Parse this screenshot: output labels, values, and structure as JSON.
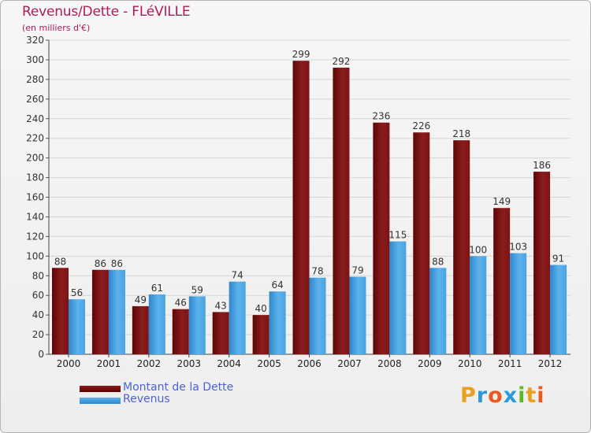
{
  "chart_data": {
    "type": "bar",
    "title": "Revenus/Dette - FLéVILLE",
    "subtitle": "(en milliers d'€)",
    "categories": [
      "2000",
      "2001",
      "2002",
      "2003",
      "2004",
      "2005",
      "2006",
      "2007",
      "2008",
      "2009",
      "2010",
      "2011",
      "2012"
    ],
    "series": [
      {
        "name": "Montant de la Dette",
        "color": "#7a0f0f",
        "values": [
          88,
          86,
          49,
          46,
          43,
          40,
          299,
          292,
          236,
          226,
          218,
          149,
          186
        ]
      },
      {
        "name": "Revenus",
        "color": "#3d95da",
        "values": [
          56,
          86,
          61,
          59,
          74,
          64,
          78,
          79,
          115,
          88,
          100,
          103,
          91
        ]
      }
    ],
    "ylim": [
      0,
      320
    ],
    "yticks": [
      0,
      20,
      40,
      60,
      80,
      100,
      120,
      140,
      160,
      180,
      200,
      220,
      240,
      260,
      280,
      300,
      320
    ],
    "grid": true,
    "legend": "bottom-left"
  },
  "logo": {
    "letters": [
      "P",
      "r",
      "o",
      "x",
      "i",
      "t",
      "i"
    ],
    "colors": [
      "#e8a020",
      "#2a9bd8",
      "#e85a20",
      "#2a9bd8",
      "#5cb82a",
      "#e8a020",
      "#e85a20"
    ]
  }
}
